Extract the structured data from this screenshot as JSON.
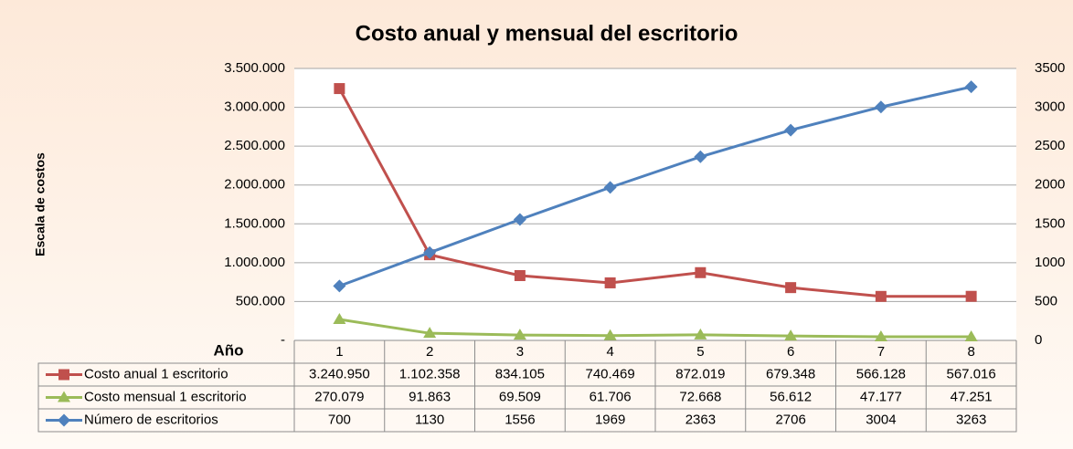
{
  "chart_data": {
    "type": "line",
    "title": "Costo anual y mensual del escritorio",
    "ylabel": "Escala de costos",
    "xlabel": "Año",
    "categories": [
      "1",
      "2",
      "3",
      "4",
      "5",
      "6",
      "7",
      "8"
    ],
    "ylim": [
      0,
      3500000
    ],
    "yticks": [
      {
        "value": 0,
        "label": "-"
      },
      {
        "value": 500000,
        "label": "500.000"
      },
      {
        "value": 1000000,
        "label": "1.000.000"
      },
      {
        "value": 1500000,
        "label": "1.500.000"
      },
      {
        "value": 2000000,
        "label": "2.000.000"
      },
      {
        "value": 2500000,
        "label": "2.500.000"
      },
      {
        "value": 3000000,
        "label": "3.000.000"
      },
      {
        "value": 3500000,
        "label": "3.500.000"
      }
    ],
    "y2lim": [
      0,
      3500
    ],
    "y2ticks": [
      0,
      500,
      1000,
      1500,
      2000,
      2500,
      3000,
      3500
    ],
    "grid": true,
    "series": [
      {
        "name": "Costo anual 1 escritorio",
        "color": "#c0504d",
        "marker": "square",
        "values": [
          3240950,
          1102358,
          834105,
          740469,
          872019,
          679348,
          566128,
          567016
        ],
        "value_labels": [
          "3.240.950",
          "1.102.358",
          "834.105",
          "740.469",
          "872.019",
          "679.348",
          "566.128",
          "567.016"
        ]
      },
      {
        "name": "Costo mensual 1 escritorio",
        "color": "#9bbb59",
        "marker": "triangle",
        "values": [
          270079,
          91863,
          69509,
          61706,
          72668,
          56612,
          47177,
          47251
        ],
        "value_labels": [
          "270.079",
          "91.863",
          "69.509",
          "61.706",
          "72.668",
          "56.612",
          "47.177",
          "47.251"
        ]
      },
      {
        "name": "Número de escritorios",
        "color": "#4f81bd",
        "marker": "diamond",
        "axis": "y2",
        "values": [
          700,
          1130,
          1556,
          1969,
          2363,
          2706,
          3004,
          3263
        ]
      }
    ]
  }
}
